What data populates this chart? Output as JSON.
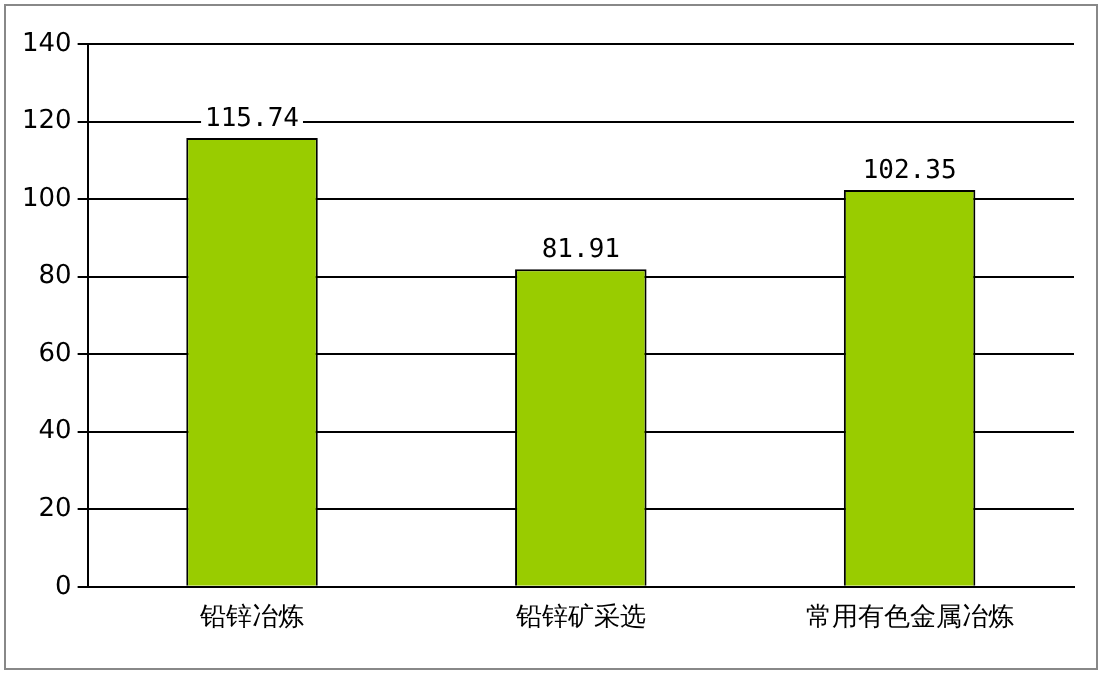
{
  "chart_data": {
    "type": "bar",
    "categories": [
      "铅锌冶炼",
      "铅锌矿采选",
      "常用有色金属冶炼"
    ],
    "values": [
      115.74,
      81.91,
      102.35
    ],
    "color": "#99cc00",
    "ylim": [
      0,
      140
    ],
    "yticks": [
      0,
      20,
      40,
      60,
      80,
      100,
      120,
      140
    ],
    "grid": "y",
    "data_labels": true,
    "legend": false
  }
}
